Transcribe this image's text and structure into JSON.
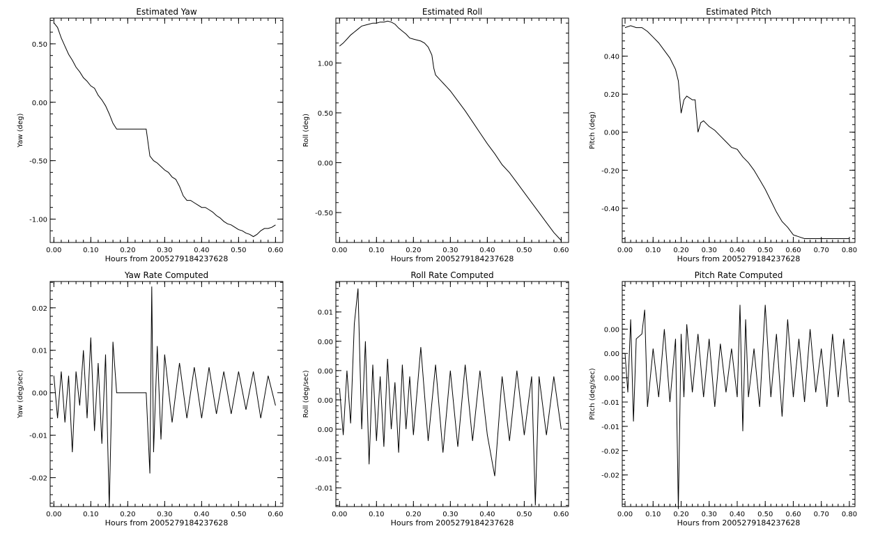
{
  "chart_data": [
    {
      "type": "line",
      "title": "Estimated Yaw",
      "xlabel": "Hours from 2005279184237628",
      "ylabel": "Yaw (deg)",
      "xlim": [
        -0.01,
        0.62
      ],
      "ylim": [
        -1.2,
        0.72
      ],
      "xticks": [
        0.0,
        0.1,
        0.2,
        0.3,
        0.4,
        0.5,
        0.6
      ],
      "xtick_labels": [
        "0.00",
        "0.10",
        "0.20",
        "0.30",
        "0.40",
        "0.50",
        "0.60"
      ],
      "yticks": [
        0.5,
        0.0,
        -0.5,
        -1.0
      ],
      "ytick_labels": [
        "0.50",
        "0.00",
        "-0.50",
        "-1.00"
      ],
      "grid": false,
      "series": [
        {
          "x": [
            0.0,
            0.01,
            0.02,
            0.03,
            0.04,
            0.05,
            0.06,
            0.07,
            0.08,
            0.09,
            0.1,
            0.11,
            0.12,
            0.13,
            0.14,
            0.15,
            0.16,
            0.17,
            0.2,
            0.25,
            0.26,
            0.27,
            0.28,
            0.29,
            0.3,
            0.31,
            0.32,
            0.33,
            0.34,
            0.35,
            0.36,
            0.37,
            0.38,
            0.39,
            0.4,
            0.41,
            0.42,
            0.43,
            0.44,
            0.45,
            0.46,
            0.47,
            0.48,
            0.49,
            0.5,
            0.51,
            0.52,
            0.53,
            0.54,
            0.55,
            0.56,
            0.57,
            0.58,
            0.59,
            0.6
          ],
          "y": [
            0.68,
            0.64,
            0.55,
            0.48,
            0.41,
            0.36,
            0.3,
            0.26,
            0.21,
            0.18,
            0.14,
            0.12,
            0.06,
            0.02,
            -0.03,
            -0.1,
            -0.18,
            -0.23,
            -0.23,
            -0.23,
            -0.46,
            -0.5,
            -0.52,
            -0.55,
            -0.58,
            -0.6,
            -0.64,
            -0.66,
            -0.72,
            -0.8,
            -0.84,
            -0.84,
            -0.86,
            -0.88,
            -0.9,
            -0.9,
            -0.92,
            -0.94,
            -0.97,
            -0.99,
            -1.02,
            -1.04,
            -1.05,
            -1.07,
            -1.09,
            -1.1,
            -1.12,
            -1.13,
            -1.15,
            -1.13,
            -1.1,
            -1.08,
            -1.08,
            -1.07,
            -1.05
          ]
        }
      ]
    },
    {
      "type": "line",
      "title": "Estimated Roll",
      "xlabel": "Hours from 2005279184237628",
      "ylabel": "Roll (deg)",
      "xlim": [
        -0.01,
        0.62
      ],
      "ylim": [
        -0.8,
        1.45
      ],
      "xticks": [
        0.0,
        0.1,
        0.2,
        0.3,
        0.4,
        0.5,
        0.6
      ],
      "xtick_labels": [
        "0.00",
        "0.10",
        "0.20",
        "0.30",
        "0.40",
        "0.50",
        "0.60"
      ],
      "yticks": [
        1.0,
        0.5,
        0.0,
        -0.5
      ],
      "ytick_labels": [
        "1.00",
        "0.50",
        "0.00",
        "-0.50"
      ],
      "grid": false,
      "series": [
        {
          "x": [
            0.0,
            0.01,
            0.02,
            0.03,
            0.04,
            0.05,
            0.06,
            0.07,
            0.08,
            0.09,
            0.1,
            0.11,
            0.12,
            0.13,
            0.14,
            0.15,
            0.16,
            0.17,
            0.18,
            0.19,
            0.2,
            0.21,
            0.22,
            0.23,
            0.24,
            0.25,
            0.255,
            0.26,
            0.27,
            0.28,
            0.29,
            0.3,
            0.32,
            0.34,
            0.36,
            0.38,
            0.4,
            0.42,
            0.44,
            0.46,
            0.48,
            0.5,
            0.52,
            0.54,
            0.56,
            0.58,
            0.6
          ],
          "y": [
            1.17,
            1.2,
            1.24,
            1.28,
            1.31,
            1.34,
            1.37,
            1.38,
            1.39,
            1.4,
            1.4,
            1.41,
            1.41,
            1.42,
            1.41,
            1.39,
            1.35,
            1.32,
            1.29,
            1.25,
            1.24,
            1.23,
            1.22,
            1.2,
            1.16,
            1.08,
            0.95,
            0.88,
            0.84,
            0.8,
            0.76,
            0.72,
            0.62,
            0.52,
            0.41,
            0.3,
            0.19,
            0.09,
            -0.02,
            -0.1,
            -0.2,
            -0.3,
            -0.4,
            -0.5,
            -0.6,
            -0.7,
            -0.78
          ]
        }
      ]
    },
    {
      "type": "line",
      "title": "Estimated Pitch",
      "xlabel": "Hours from 2005279184237628",
      "ylabel": "Pitch (deg)",
      "xlim": [
        -0.01,
        0.82
      ],
      "ylim": [
        -0.58,
        0.6
      ],
      "xticks": [
        0.0,
        0.1,
        0.2,
        0.3,
        0.4,
        0.5,
        0.6,
        0.7,
        0.8
      ],
      "xtick_labels": [
        "0.00",
        "0.10",
        "0.20",
        "0.30",
        "0.40",
        "0.50",
        "0.60",
        "0.70",
        "0.80"
      ],
      "yticks": [
        0.4,
        0.2,
        0.0,
        -0.2,
        -0.4
      ],
      "ytick_labels": [
        "0.40",
        "0.20",
        "0.00",
        "-0.20",
        "-0.40"
      ],
      "grid": false,
      "series": [
        {
          "x": [
            0.0,
            0.02,
            0.04,
            0.06,
            0.08,
            0.1,
            0.12,
            0.14,
            0.16,
            0.18,
            0.19,
            0.2,
            0.21,
            0.22,
            0.24,
            0.25,
            0.26,
            0.27,
            0.28,
            0.3,
            0.32,
            0.34,
            0.36,
            0.38,
            0.4,
            0.42,
            0.44,
            0.46,
            0.48,
            0.5,
            0.52,
            0.54,
            0.56,
            0.58,
            0.6,
            0.62,
            0.64,
            0.66,
            0.68,
            0.7,
            0.72,
            0.74,
            0.76,
            0.78,
            0.8
          ],
          "y": [
            0.55,
            0.56,
            0.55,
            0.55,
            0.53,
            0.5,
            0.47,
            0.43,
            0.39,
            0.33,
            0.27,
            0.1,
            0.17,
            0.19,
            0.17,
            0.17,
            0.0,
            0.05,
            0.06,
            0.03,
            0.01,
            -0.02,
            -0.05,
            -0.08,
            -0.09,
            -0.13,
            -0.16,
            -0.2,
            -0.25,
            -0.3,
            -0.36,
            -0.42,
            -0.47,
            -0.5,
            -0.54,
            -0.55,
            -0.56,
            -0.56,
            -0.56,
            -0.56,
            -0.56,
            -0.56,
            -0.56,
            -0.56,
            -0.56
          ]
        }
      ]
    },
    {
      "type": "line",
      "title": "Yaw Rate Computed",
      "xlabel": "Hours from 2005279184237628",
      "ylabel": "Yaw (deg/sec)",
      "xlim": [
        -0.01,
        0.62
      ],
      "ylim": [
        -0.0268,
        0.0262
      ],
      "xticks": [
        0.0,
        0.1,
        0.2,
        0.3,
        0.4,
        0.5,
        0.6
      ],
      "xtick_labels": [
        "0.00",
        "0.10",
        "0.20",
        "0.30",
        "0.40",
        "0.50",
        "0.60"
      ],
      "yticks": [
        0.02,
        0.01,
        0.0,
        -0.01,
        -0.02
      ],
      "ytick_labels": [
        "0.02",
        "0.01",
        "0.00",
        "-0.01",
        "-0.02"
      ],
      "grid": false,
      "series": [
        {
          "x": [
            0.0,
            0.01,
            0.02,
            0.03,
            0.04,
            0.05,
            0.06,
            0.07,
            0.08,
            0.09,
            0.1,
            0.11,
            0.12,
            0.13,
            0.14,
            0.15,
            0.16,
            0.17,
            0.2,
            0.25,
            0.26,
            0.265,
            0.27,
            0.28,
            0.29,
            0.3,
            0.32,
            0.34,
            0.36,
            0.38,
            0.4,
            0.42,
            0.44,
            0.46,
            0.48,
            0.5,
            0.52,
            0.54,
            0.56,
            0.58,
            0.6
          ],
          "y": [
            0.004,
            -0.006,
            0.005,
            -0.007,
            0.004,
            -0.014,
            0.005,
            -0.003,
            0.01,
            -0.006,
            0.013,
            -0.009,
            0.007,
            -0.012,
            0.009,
            -0.027,
            0.012,
            0.0,
            0.0,
            0.0,
            -0.019,
            0.025,
            -0.014,
            0.011,
            -0.011,
            0.009,
            -0.007,
            0.007,
            -0.006,
            0.006,
            -0.006,
            0.006,
            -0.005,
            0.005,
            -0.005,
            0.005,
            -0.004,
            0.005,
            -0.006,
            0.004,
            -0.003
          ]
        }
      ]
    },
    {
      "type": "line",
      "title": "Roll Rate Computed",
      "xlabel": "Hours from 2005279184237628",
      "ylabel": "Roll (deg/sec)",
      "xlim": [
        -0.01,
        0.62
      ],
      "ylim": [
        -0.0182,
        0.0202
      ],
      "xticks": [
        0.0,
        0.1,
        0.2,
        0.3,
        0.4,
        0.5,
        0.6
      ],
      "xtick_labels": [
        "0.00",
        "0.10",
        "0.20",
        "0.30",
        "0.40",
        "0.50",
        "0.60"
      ],
      "yticks": [
        0.015,
        0.01,
        0.005,
        0.0,
        -0.005,
        -0.01,
        -0.015
      ],
      "ytick_labels": [
        "0.01",
        "0.00",
        "0.00",
        "0.00",
        "0.00",
        "-0.01",
        "-0.01"
      ],
      "grid": false,
      "series": [
        {
          "x": [
            0.0,
            0.01,
            0.02,
            0.03,
            0.04,
            0.05,
            0.06,
            0.07,
            0.08,
            0.09,
            0.1,
            0.11,
            0.12,
            0.13,
            0.14,
            0.15,
            0.16,
            0.17,
            0.18,
            0.19,
            0.2,
            0.22,
            0.24,
            0.26,
            0.28,
            0.3,
            0.32,
            0.34,
            0.36,
            0.38,
            0.4,
            0.42,
            0.44,
            0.46,
            0.48,
            0.5,
            0.52,
            0.53,
            0.54,
            0.56,
            0.58,
            0.6
          ],
          "y": [
            0.002,
            -0.006,
            0.005,
            -0.004,
            0.013,
            0.019,
            -0.005,
            0.01,
            -0.011,
            0.006,
            -0.007,
            0.004,
            -0.008,
            0.007,
            -0.005,
            0.003,
            -0.009,
            0.006,
            -0.005,
            0.004,
            -0.006,
            0.009,
            -0.007,
            0.006,
            -0.009,
            0.005,
            -0.008,
            0.006,
            -0.007,
            0.005,
            -0.006,
            -0.013,
            0.004,
            -0.007,
            0.005,
            -0.006,
            0.004,
            -0.018,
            0.004,
            -0.006,
            0.004,
            -0.005
          ]
        }
      ]
    },
    {
      "type": "line",
      "title": "Pitch Rate Computed",
      "xlabel": "Hours from 2005279184237628",
      "ylabel": "Pitch (deg/sec)",
      "xlim": [
        -0.01,
        0.82
      ],
      "ylim": [
        -0.0265,
        0.0198
      ],
      "xticks": [
        0.0,
        0.1,
        0.2,
        0.3,
        0.4,
        0.5,
        0.6,
        0.7,
        0.8
      ],
      "xtick_labels": [
        "0.00",
        "0.10",
        "0.20",
        "0.30",
        "0.40",
        "0.50",
        "0.60",
        "0.70",
        "0.80"
      ],
      "yticks": [
        0.01,
        0.005,
        0.0,
        -0.005,
        -0.01,
        -0.015,
        -0.02
      ],
      "ytick_labels": [
        "0.00",
        "0.00",
        "0.00",
        "-0.01",
        "-0.01",
        "-0.02",
        "-0.02"
      ],
      "grid": false,
      "series": [
        {
          "x": [
            0.0,
            0.01,
            0.02,
            0.03,
            0.04,
            0.06,
            0.07,
            0.08,
            0.1,
            0.12,
            0.14,
            0.16,
            0.18,
            0.19,
            0.2,
            0.21,
            0.22,
            0.24,
            0.26,
            0.28,
            0.3,
            0.32,
            0.34,
            0.36,
            0.38,
            0.4,
            0.41,
            0.42,
            0.43,
            0.44,
            0.46,
            0.48,
            0.5,
            0.52,
            0.54,
            0.56,
            0.58,
            0.6,
            0.62,
            0.64,
            0.66,
            0.68,
            0.7,
            0.72,
            0.74,
            0.76,
            0.78,
            0.8
          ],
          "y": [
            0.005,
            -0.003,
            0.012,
            -0.009,
            0.008,
            0.009,
            0.014,
            -0.006,
            0.006,
            -0.004,
            0.01,
            -0.005,
            0.008,
            -0.027,
            0.009,
            -0.004,
            0.011,
            -0.003,
            0.009,
            -0.004,
            0.008,
            -0.006,
            0.007,
            -0.003,
            0.006,
            -0.004,
            0.015,
            -0.011,
            0.012,
            -0.004,
            0.006,
            -0.006,
            0.015,
            -0.004,
            0.009,
            -0.008,
            0.012,
            -0.004,
            0.008,
            -0.005,
            0.01,
            -0.003,
            0.006,
            -0.006,
            0.009,
            -0.004,
            0.008,
            -0.005
          ]
        }
      ]
    }
  ]
}
